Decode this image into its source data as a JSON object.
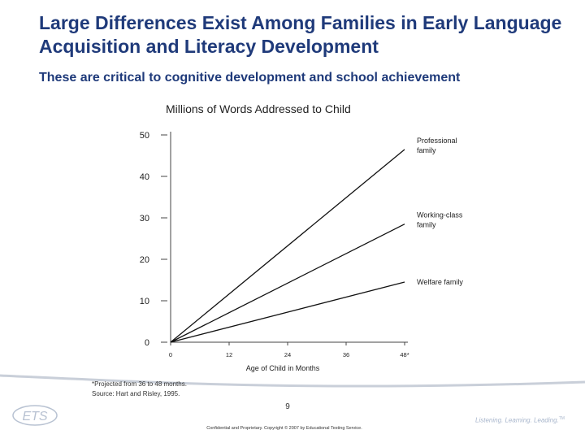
{
  "slide": {
    "title": "Large Differences Exist Among Families in Early Language Acquisition and Literacy Development",
    "subtitle": "These are critical to cognitive development and school achievement",
    "page_number": "9",
    "confidential": "Confidential and Proprietary. Copyright © 2007 by Educational Testing Service.",
    "tagline": "Listening. Learning. Leading.",
    "tagline_mark": "TM",
    "logo_text": "ETS"
  },
  "colors": {
    "title": "#1f3a7a",
    "lines": "#111111",
    "swoosh": "#c9cfd9",
    "tagline": "#a8b6cc"
  },
  "chart_data": {
    "type": "line",
    "title": "Millions of Words Addressed to Child",
    "xlabel": "Age of Child in Months",
    "ylabel": "",
    "x": [
      0,
      48
    ],
    "xticks": [
      "0",
      "12",
      "24",
      "36",
      "48*"
    ],
    "xtick_values": [
      0,
      12,
      24,
      36,
      48
    ],
    "yticks": [
      "0",
      "10",
      "20",
      "30",
      "40",
      "50"
    ],
    "ytick_values": [
      0,
      10,
      20,
      30,
      40,
      50
    ],
    "xlim": [
      0,
      48
    ],
    "ylim": [
      0,
      50
    ],
    "grid": false,
    "series": [
      {
        "name": "Professional family",
        "x": [
          0,
          48
        ],
        "values": [
          0,
          46.5
        ]
      },
      {
        "name": "Working-class family",
        "x": [
          0,
          48
        ],
        "values": [
          0,
          28.5
        ]
      },
      {
        "name": "Welfare family",
        "x": [
          0,
          48
        ],
        "values": [
          0,
          14.5
        ]
      }
    ],
    "footnotes": [
      "*Projected from 36 to 48 months.",
      "Source: Hart and Risley, 1995."
    ]
  }
}
